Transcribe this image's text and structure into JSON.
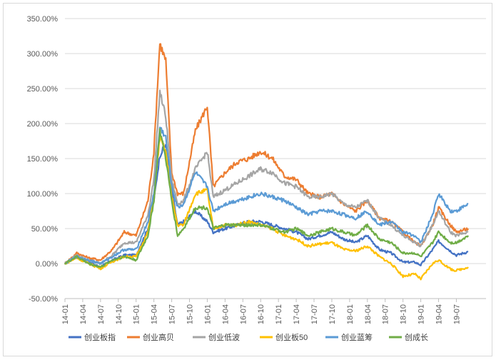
{
  "chart_data": {
    "type": "line",
    "title": "",
    "xlabel": "",
    "ylabel": "",
    "ylim": [
      -0.5,
      3.5
    ],
    "y_format": "percent",
    "y_ticks": [
      -0.5,
      0,
      0.5,
      1.0,
      1.5,
      2.0,
      2.5,
      3.0,
      3.5
    ],
    "y_tick_labels": [
      "-50.00%",
      "0.00%",
      "50.00%",
      "100.00%",
      "150.00%",
      "200.00%",
      "250.00%",
      "300.00%",
      "350.00%"
    ],
    "grid": "horizontal",
    "legend_position": "bottom",
    "x_tick_labels": [
      "14-01",
      "14-04",
      "14-07",
      "14-10",
      "15-01",
      "15-04",
      "15-07",
      "15-10",
      "16-01",
      "16-04",
      "16-07",
      "16-10",
      "17-01",
      "17-04",
      "17-07",
      "17-10",
      "18-01",
      "18-04",
      "18-07",
      "18-10",
      "19-01",
      "19-04",
      "19-07"
    ],
    "x": [
      "14-01",
      "14-03",
      "14-05",
      "14-07",
      "14-09",
      "14-11",
      "15-01",
      "15-03",
      "15-04",
      "15-05",
      "15-06",
      "15-07",
      "15-08",
      "15-09",
      "15-11",
      "16-01",
      "16-02",
      "16-04",
      "16-06",
      "16-08",
      "16-10",
      "16-12",
      "17-02",
      "17-04",
      "17-06",
      "17-08",
      "17-10",
      "17-12",
      "18-02",
      "18-04",
      "18-06",
      "18-08",
      "18-10",
      "18-12",
      "19-01",
      "19-03",
      "19-04",
      "19-06",
      "19-07",
      "19-09"
    ],
    "series": [
      {
        "name": "创业板指",
        "color": "#4472c4",
        "values": [
          0,
          0.1,
          0.02,
          -0.05,
          0.05,
          0.12,
          0.12,
          0.5,
          0.9,
          1.55,
          1.7,
          1.05,
          0.55,
          0.6,
          0.75,
          0.6,
          0.45,
          0.5,
          0.55,
          0.6,
          0.6,
          0.55,
          0.5,
          0.45,
          0.35,
          0.4,
          0.45,
          0.35,
          0.3,
          0.4,
          0.2,
          0.15,
          0.02,
          0.02,
          -0.02,
          0.2,
          0.32,
          0.18,
          0.12,
          0.17
        ]
      },
      {
        "name": "创业高贝",
        "color": "#ed7d31",
        "values": [
          0,
          0.15,
          0.08,
          0.05,
          0.2,
          0.45,
          0.4,
          0.9,
          1.6,
          3.15,
          2.9,
          1.3,
          1.0,
          1.0,
          1.9,
          2.25,
          1.1,
          1.3,
          1.45,
          1.5,
          1.6,
          1.5,
          1.25,
          1.2,
          1.0,
          0.95,
          1.0,
          0.85,
          0.75,
          0.9,
          0.65,
          0.6,
          0.45,
          0.3,
          0.25,
          0.55,
          0.8,
          0.55,
          0.45,
          0.5
        ]
      },
      {
        "name": "创业低波",
        "color": "#a5a5a5",
        "values": [
          0,
          0.12,
          0.05,
          0.0,
          0.12,
          0.3,
          0.3,
          0.7,
          1.2,
          2.45,
          2.1,
          1.2,
          0.85,
          0.9,
          1.35,
          1.6,
          0.95,
          1.05,
          1.15,
          1.25,
          1.35,
          1.3,
          1.15,
          1.1,
          0.95,
          0.95,
          1.0,
          0.85,
          0.8,
          0.9,
          0.65,
          0.55,
          0.4,
          0.3,
          0.25,
          0.55,
          0.75,
          0.45,
          0.4,
          0.45
        ]
      },
      {
        "name": "创业板50",
        "color": "#ffc000",
        "values": [
          0,
          0.08,
          0.0,
          -0.07,
          0.03,
          0.1,
          0.1,
          0.45,
          0.95,
          1.8,
          1.6,
          0.95,
          0.55,
          0.55,
          1.0,
          1.05,
          0.5,
          0.55,
          0.55,
          0.6,
          0.55,
          0.5,
          0.4,
          0.35,
          0.25,
          0.28,
          0.3,
          0.2,
          0.18,
          0.25,
          0.1,
          0.0,
          -0.18,
          -0.15,
          -0.22,
          0.0,
          0.05,
          -0.08,
          -0.1,
          -0.05
        ]
      },
      {
        "name": "创业蓝筹",
        "color": "#5b9bd5",
        "values": [
          0,
          0.1,
          0.05,
          0.0,
          0.1,
          0.2,
          0.2,
          0.6,
          1.0,
          1.95,
          1.8,
          1.1,
          0.8,
          0.85,
          1.3,
          1.1,
          0.75,
          0.85,
          0.9,
          0.95,
          1.0,
          0.95,
          0.9,
          0.8,
          0.7,
          0.75,
          0.75,
          0.7,
          0.65,
          0.75,
          0.55,
          0.6,
          0.45,
          0.4,
          0.3,
          0.7,
          1.0,
          0.75,
          0.75,
          0.85
        ]
      },
      {
        "name": "创成长",
        "color": "#70ad47",
        "values": [
          0,
          0.1,
          0.0,
          -0.05,
          0.05,
          0.1,
          0.05,
          0.4,
          0.9,
          1.9,
          1.5,
          0.9,
          0.4,
          0.5,
          0.8,
          0.8,
          0.5,
          0.55,
          0.55,
          0.55,
          0.55,
          0.5,
          0.45,
          0.5,
          0.4,
          0.45,
          0.5,
          0.45,
          0.4,
          0.55,
          0.35,
          0.3,
          0.15,
          0.15,
          0.1,
          0.3,
          0.45,
          0.3,
          0.3,
          0.4
        ]
      }
    ]
  }
}
